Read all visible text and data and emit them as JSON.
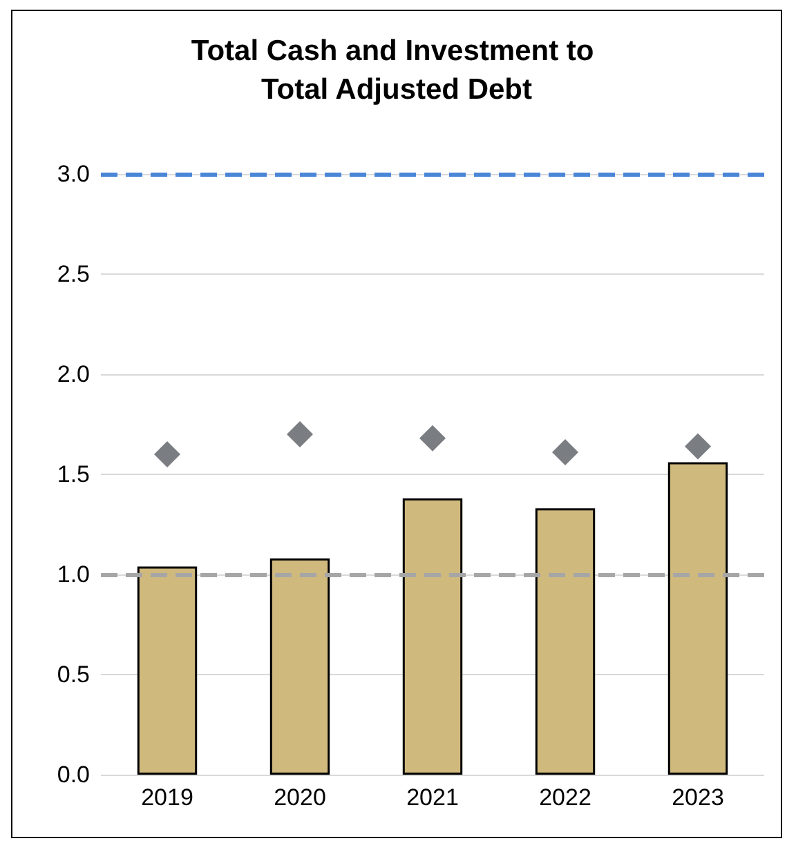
{
  "chart_data": {
    "type": "bar",
    "title": "Total Cash and Investment to Total Adjusted Debt",
    "categories": [
      "2019",
      "2020",
      "2021",
      "2022",
      "2023"
    ],
    "series": [
      {
        "color": "#cfb97d",
        "values": [
          1.04,
          1.08,
          1.38,
          1.33,
          1.56
        ]
      },
      {
        "type": "scatter",
        "color": "#595e63",
        "marker": "diamond",
        "values": [
          1.6,
          1.7,
          1.68,
          1.61,
          1.64
        ]
      }
    ],
    "ylim": [
      0,
      3
    ],
    "yticks": [
      {
        "value": 0,
        "label": "0.0"
      },
      {
        "value": 0.5,
        "label": "0.5"
      },
      {
        "value": 1,
        "label": "1.0"
      },
      {
        "value": 1.5,
        "label": "1.5"
      },
      {
        "value": 2,
        "label": "2.0"
      },
      {
        "value": 2.5,
        "label": "2.5"
      },
      {
        "value": 3,
        "label": "3.0"
      }
    ],
    "ref_lines": [
      {
        "axis": "y",
        "value": 3,
        "color": "#4a86d8",
        "line_style": "dashed"
      },
      {
        "axis": "y",
        "value": 1,
        "color": "#a6a6a6",
        "line_style": "dashed"
      }
    ],
    "grid": "y"
  }
}
